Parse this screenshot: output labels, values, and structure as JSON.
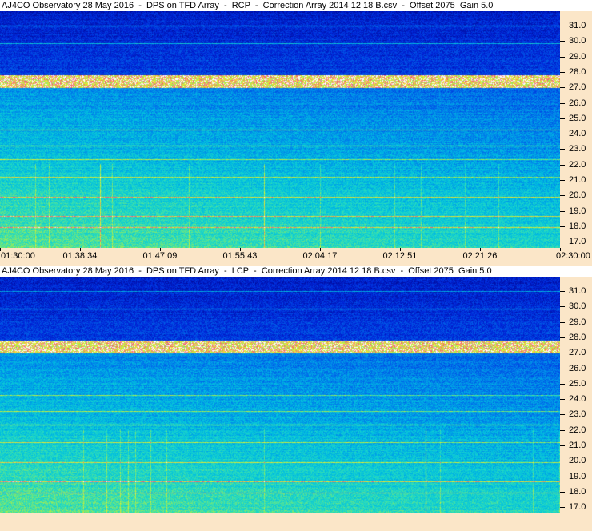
{
  "panels": [
    {
      "title": "AJ4CO Observatory 28 May 2016  -  DPS on TFD Array  -  RCP  -  Correction Array 2014 12 18 B.csv  -  Offset 2075  Gain 5.0",
      "freq_labels": [
        "31.0",
        "30.0",
        "29.0",
        "28.0",
        "27.0",
        "26.0",
        "25.0",
        "24.0",
        "23.0",
        "22.0",
        "21.0",
        "20.0",
        "19.0",
        "18.0",
        "17.0"
      ],
      "time_labels": [
        "01:30:00",
        "01:38:34",
        "01:47:09",
        "01:55:43",
        "02:04:17",
        "02:12:51",
        "02:21:26",
        "02:30:00"
      ]
    },
    {
      "title": "AJ4CO Observatory 28 May 2016  -  DPS on TFD Array  -  LCP  -  Correction Array 2014 12 18 B.csv  -  Offset 2075  Gain 5.0",
      "freq_labels": [
        "31.0",
        "30.0",
        "29.0",
        "28.0",
        "27.0",
        "26.0",
        "25.0",
        "24.0",
        "23.0",
        "22.0",
        "21.0",
        "20.0",
        "19.0",
        "18.0",
        "17.0"
      ]
    }
  ]
}
